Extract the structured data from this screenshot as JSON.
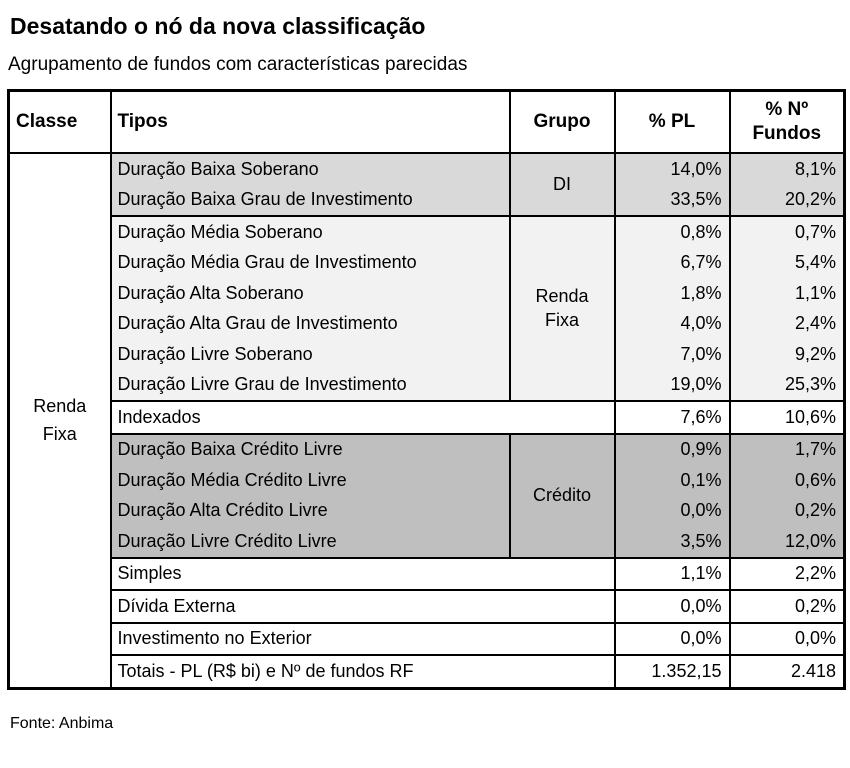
{
  "page": {
    "title": "Desatando o nó da nova classificação",
    "subtitle": "Agrupamento de fundos com características parecidas",
    "source": "Fonte: Anbima"
  },
  "colors": {
    "gray_medium": "#d9d9d9",
    "gray_light": "#f2f2f2",
    "gray_dark": "#bfbfbf",
    "white": "#ffffff",
    "border": "#000000"
  },
  "table": {
    "headers": {
      "classe": "Classe",
      "tipos": "Tipos",
      "grupo": "Grupo",
      "pl": "% PL",
      "fundos": "% Nº\nFundos"
    },
    "classe_label": "Renda\nFixa",
    "sections": [
      {
        "bg": "#d9d9d9",
        "grupo": "DI",
        "rows": [
          {
            "tipo": "Duração Baixa Soberano",
            "pl": "14,0%",
            "fundos": "8,1%"
          },
          {
            "tipo": "Duração Baixa Grau de Investimento",
            "pl": "33,5%",
            "fundos": "20,2%"
          }
        ]
      },
      {
        "bg": "#f2f2f2",
        "grupo": "Renda\nFixa",
        "rows": [
          {
            "tipo": "Duração Média Soberano",
            "pl": "0,8%",
            "fundos": "0,7%"
          },
          {
            "tipo": "Duração Média Grau de Investimento",
            "pl": "6,7%",
            "fundos": "5,4%"
          },
          {
            "tipo": "Duração Alta Soberano",
            "pl": "1,8%",
            "fundos": "1,1%"
          },
          {
            "tipo": "Duração Alta Grau de Investimento",
            "pl": "4,0%",
            "fundos": "2,4%"
          },
          {
            "tipo": "Duração Livre Soberano",
            "pl": "7,0%",
            "fundos": "9,2%"
          },
          {
            "tipo": "Duração Livre Grau de Investimento",
            "pl": "19,0%",
            "fundos": "25,3%"
          }
        ]
      },
      {
        "bg": "#ffffff",
        "grupo": null,
        "rows": [
          {
            "tipo": "Indexados",
            "pl": "7,6%",
            "fundos": "10,6%"
          }
        ]
      },
      {
        "bg": "#bfbfbf",
        "grupo": "Crédito",
        "rows": [
          {
            "tipo": "Duração Baixa Crédito Livre",
            "pl": "0,9%",
            "fundos": "1,7%"
          },
          {
            "tipo": "Duração Média Crédito Livre",
            "pl": "0,1%",
            "fundos": "0,6%"
          },
          {
            "tipo": "Duração Alta Crédito Livre",
            "pl": "0,0%",
            "fundos": "0,2%"
          },
          {
            "tipo": "Duração Livre Crédito Livre",
            "pl": "3,5%",
            "fundos": "12,0%"
          }
        ]
      },
      {
        "bg": "#ffffff",
        "grupo": null,
        "rows": [
          {
            "tipo": "Simples",
            "pl": "1,1%",
            "fundos": "2,2%"
          }
        ]
      },
      {
        "bg": "#ffffff",
        "grupo": null,
        "rows": [
          {
            "tipo": "Dívida Externa",
            "pl": "0,0%",
            "fundos": "0,2%"
          }
        ]
      },
      {
        "bg": "#ffffff",
        "grupo": null,
        "rows": [
          {
            "tipo": "Investimento no Exterior",
            "pl": "0,0%",
            "fundos": "0,0%"
          }
        ]
      },
      {
        "bg": "#ffffff",
        "grupo": null,
        "rows": [
          {
            "tipo": "Totais - PL (R$ bi) e Nº de fundos RF",
            "pl": "1.352,15",
            "fundos": "2.418"
          }
        ]
      }
    ]
  }
}
